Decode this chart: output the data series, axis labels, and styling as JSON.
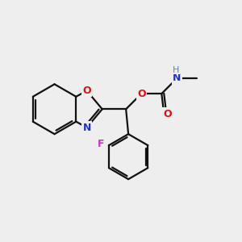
{
  "bg_color": "#eeeeee",
  "bond_color": "#111111",
  "N_color": "#2233cc",
  "O_color": "#dd1111",
  "F_color": "#cc33cc",
  "H_color": "#558899",
  "lw": 1.6,
  "figsize": [
    3.0,
    3.0
  ],
  "dpi": 100,
  "xlim": [
    0,
    10
  ],
  "ylim": [
    0,
    10
  ]
}
